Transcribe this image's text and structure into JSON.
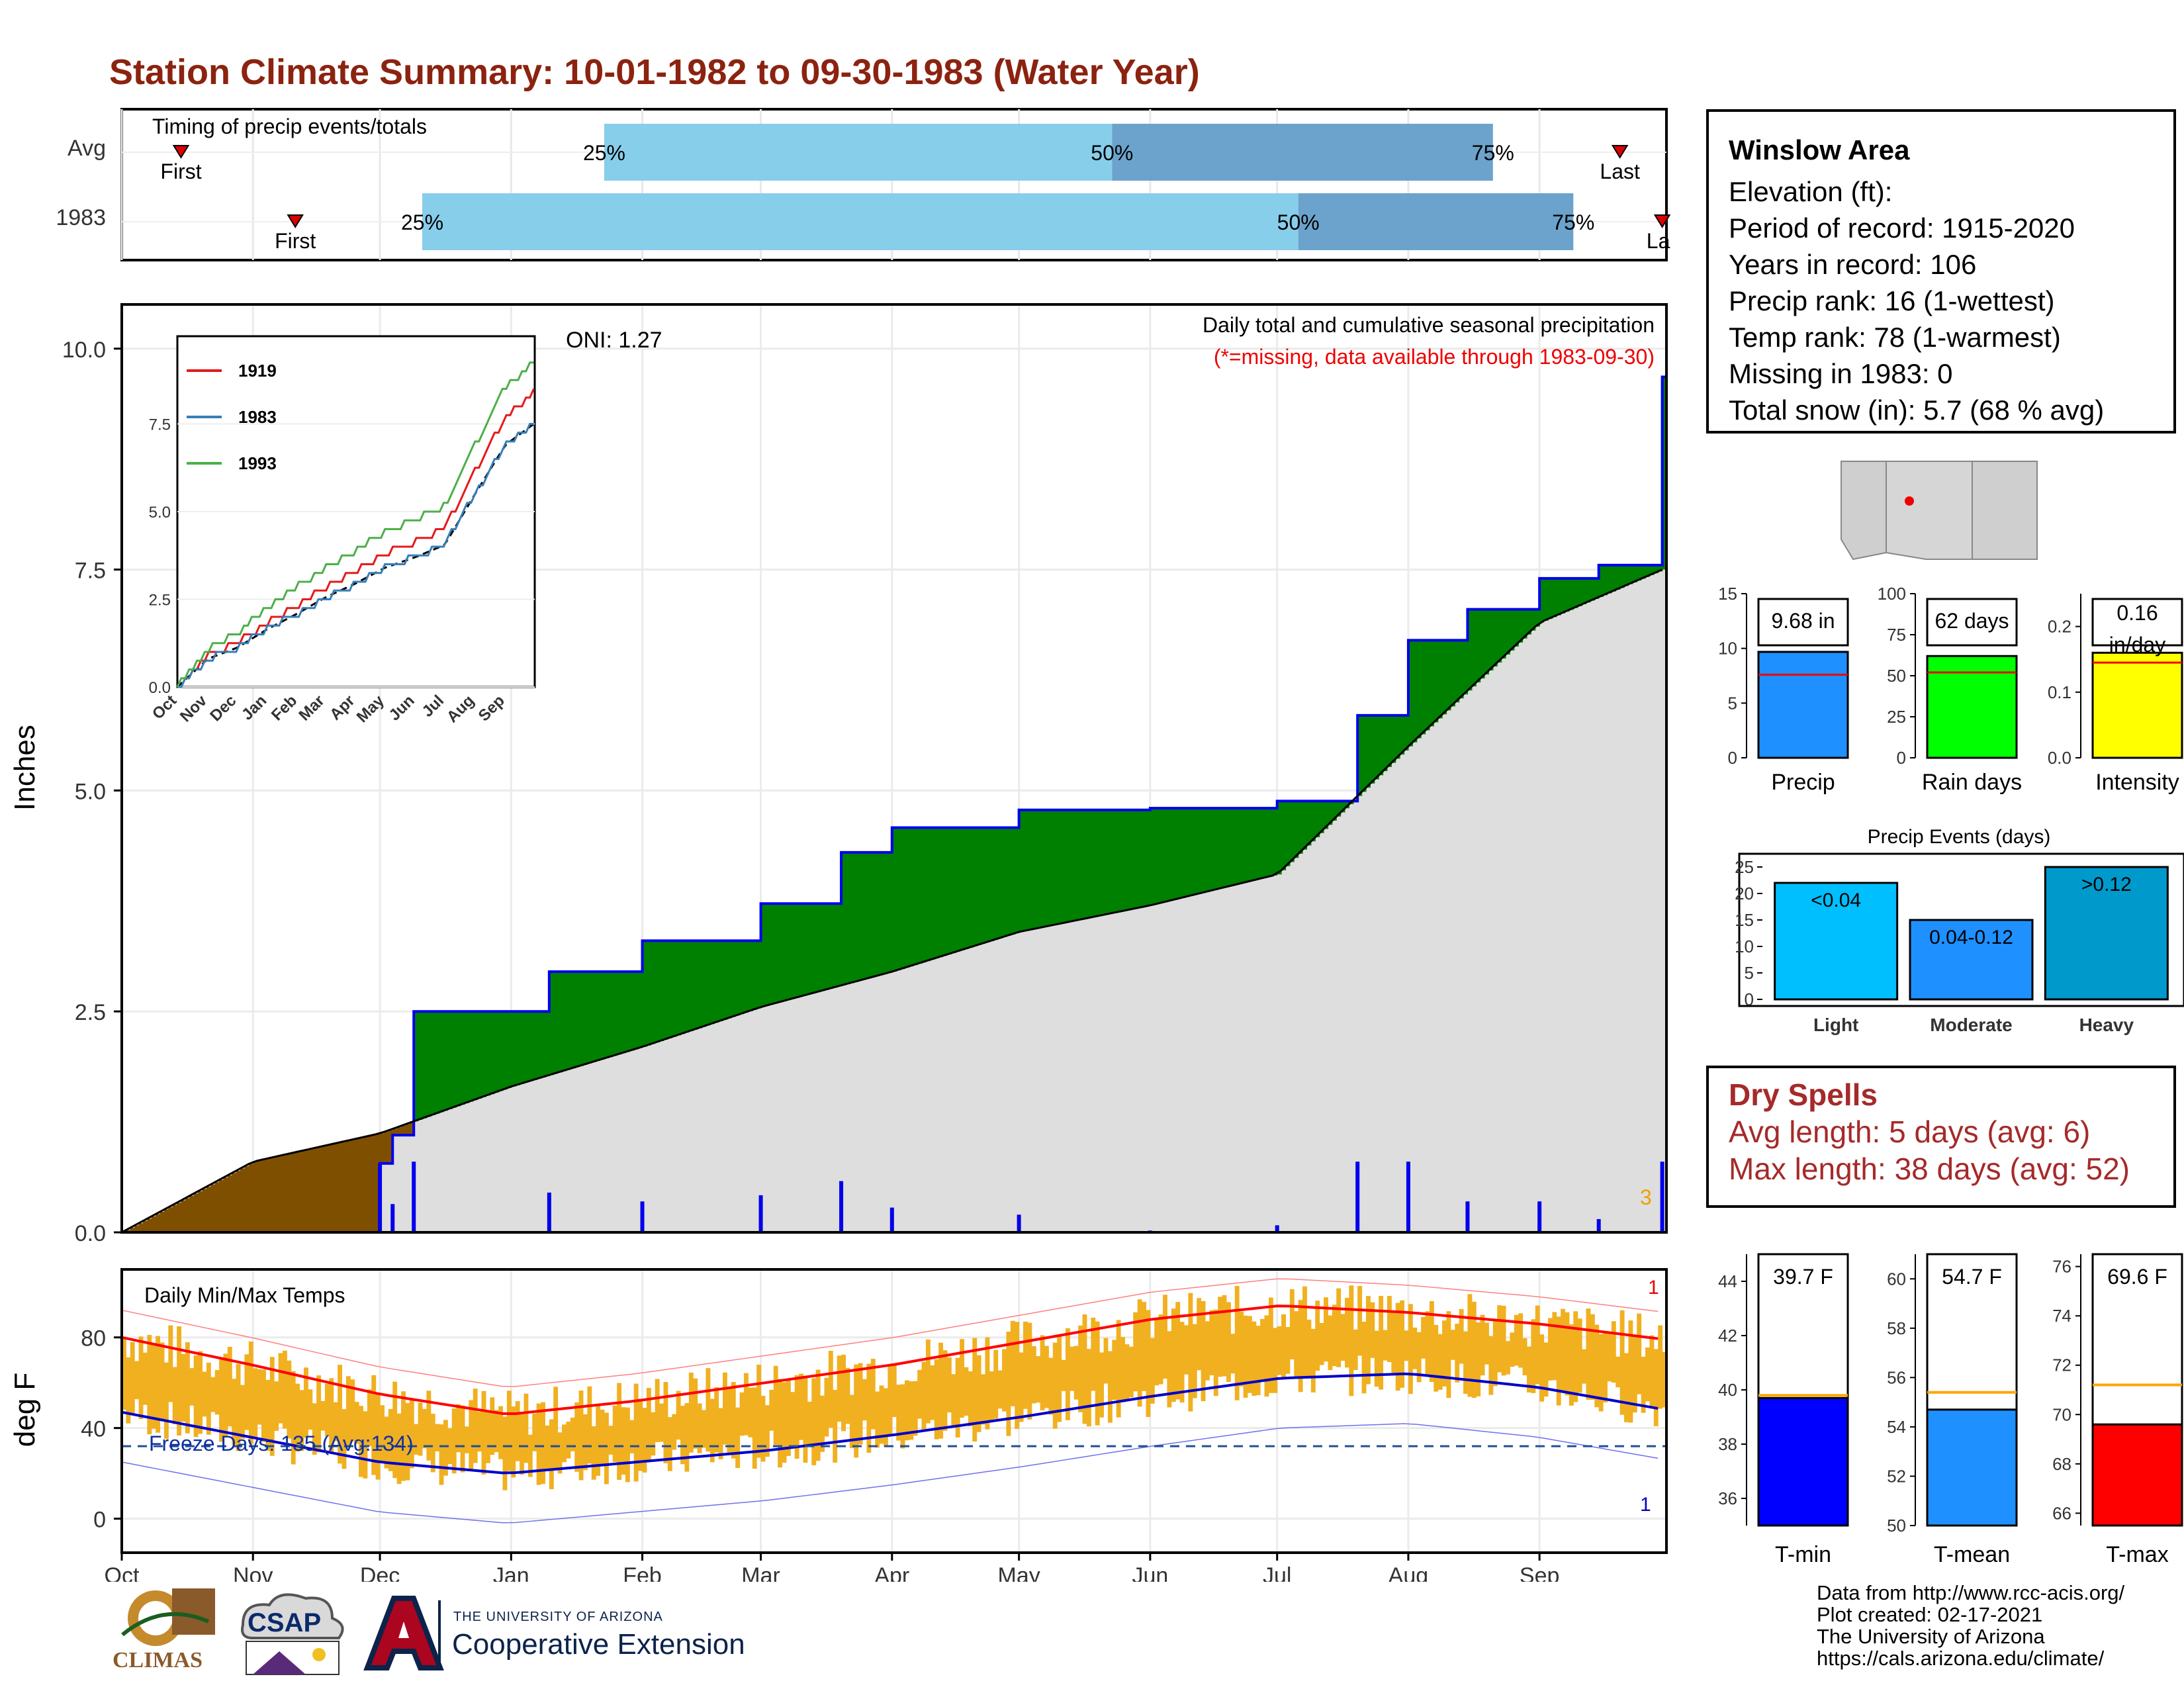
{
  "title": "Station Climate Summary: 10-01-1982 to 09-30-1983 (Water Year)",
  "timing": {
    "label": "Timing of precip events/totals",
    "rows": [
      "Avg",
      "1983"
    ],
    "first_label": "First",
    "last_label": "Last",
    "last_label_cut": "La",
    "avg": {
      "first": "1982-10-15",
      "p25": "1983-01-23",
      "p50": "1983-05-23",
      "p75": "1983-08-21",
      "last": "1983-09-20"
    },
    "y1983": {
      "first": "1982-11-11",
      "p25": "1982-12-11",
      "p50": "1983-07-06",
      "p75": "1983-09-09",
      "last": "1983-09-30"
    },
    "pct_labels": [
      "25%",
      "50%",
      "75%"
    ]
  },
  "main": {
    "ylabel": "Inches",
    "oni": "ONI: 1.27",
    "note1": "Daily total and cumulative seasonal precipitation",
    "note2": "(*=missing, data available through 1983-09-30)",
    "count_label": "3"
  },
  "inset": {
    "legend": [
      "1919",
      "1983",
      "1993"
    ],
    "colors": [
      "#e41a1c",
      "#377eb8",
      "#4daf4a"
    ]
  },
  "temps": {
    "ylabel": "deg F",
    "label": "Daily Min/Max Temps",
    "freeze": "Freeze Days: 135 (Avg:134)",
    "rank_top": "1",
    "rank_bottom": "1"
  },
  "months": [
    "Oct",
    "Nov",
    "Dec",
    "Jan",
    "Feb",
    "Mar",
    "Apr",
    "May",
    "Jun",
    "Jul",
    "Aug",
    "Sep"
  ],
  "info": {
    "station": "Winslow Area",
    "lines": [
      "Elevation (ft):",
      "Period of record: 1915-2020",
      "Years in record: 106",
      "Precip rank: 16 (1-wettest)",
      "Temp rank: 78 (1-warmest)",
      "Missing in 1983: 0",
      "Total snow (in): 5.7 (68 % avg)"
    ]
  },
  "summary_bars": {
    "precip": {
      "label": "Precip",
      "value_label": "9.68 in"
    },
    "rain_days": {
      "label": "Rain days",
      "value_label": "62 days"
    },
    "intensity": {
      "label": "Intensity",
      "value_label_1": "0.16",
      "value_label_2": "in/day"
    }
  },
  "events": {
    "title": "Precip Events (days)",
    "categories": [
      "Light",
      "Moderate",
      "Heavy"
    ],
    "bar_labels": [
      "<0.04",
      "0.04-0.12",
      ">0.12"
    ]
  },
  "dry": {
    "title": "Dry Spells",
    "avg": "Avg length: 5 days (avg: 6)",
    "max": "Max length: 38 days (avg: 52)"
  },
  "temp_bars": {
    "tmin": {
      "label": "T-min",
      "value_label": "39.7 F"
    },
    "tmean": {
      "label": "T-mean",
      "value_label": "54.7 F"
    },
    "tmax": {
      "label": "T-max",
      "value_label": "69.6 F"
    }
  },
  "logos": {
    "climas": "CLIMAS",
    "csap": "CSAP",
    "ua_small": "THE UNIVERSITY OF ARIZONA",
    "ua_big": "Cooperative Extension"
  },
  "credits": [
    "Data from http://www.rcc-acis.org/",
    "Plot created: 02-17-2021",
    "The University of Arizona",
    "https://cals.arizona.edu/climate/"
  ],
  "colors": {
    "title": "#8b2310",
    "green": "#008000",
    "brown": "#7f4f00",
    "gray": "#dedede",
    "blue": "#0000ee",
    "light_blue": "#87ceeb",
    "mid_blue": "#6ba3cc",
    "orange": "#f0b020",
    "red": "#ff0000",
    "dry": "#a52a2a"
  },
  "chart_data": [
    {
      "type": "area",
      "title": "Daily total and cumulative seasonal precipitation",
      "ylabel": "Inches",
      "ylim": [
        0,
        10.5
      ],
      "yticks": [
        0.0,
        2.5,
        5.0,
        7.5,
        10.0
      ],
      "x_axis": "Oct 1982 - Sep 1983",
      "series": [
        {
          "name": "1983",
          "x": [
            "1982-10-01",
            "1982-11-28",
            "1982-12-01",
            "1982-12-04",
            "1982-12-09",
            "1983-01-10",
            "1983-02-01",
            "1983-03-01",
            "1983-03-20",
            "1983-04-01",
            "1983-05-01",
            "1983-06-01",
            "1983-07-01",
            "1983-07-20",
            "1983-08-01",
            "1983-08-15",
            "1983-09-01",
            "1983-09-15",
            "1983-09-30"
          ],
          "values": [
            0.0,
            0.0,
            0.78,
            1.1,
            2.5,
            2.95,
            3.3,
            3.72,
            4.3,
            4.58,
            4.78,
            4.8,
            4.88,
            5.85,
            6.7,
            7.05,
            7.4,
            7.55,
            9.68
          ]
        },
        {
          "name": "Average",
          "x": [
            "1982-10-01",
            "1982-11-01",
            "1982-12-01",
            "1983-01-01",
            "1983-02-01",
            "1983-03-01",
            "1983-04-01",
            "1983-05-01",
            "1983-06-01",
            "1983-07-01",
            "1983-08-01",
            "1983-09-01",
            "1983-09-30"
          ],
          "values": [
            0.0,
            0.8,
            1.12,
            1.65,
            2.1,
            2.55,
            2.95,
            3.4,
            3.7,
            4.05,
            5.5,
            6.9,
            7.5
          ]
        }
      ]
    },
    {
      "type": "line",
      "title": "Daily Min/Max Temps",
      "ylabel": "deg F",
      "ylim": [
        -15,
        110
      ],
      "yticks": [
        0,
        40,
        80
      ],
      "series": [
        {
          "name": "Avg Max",
          "x": [
            "Oct",
            "Nov",
            "Dec",
            "Jan",
            "Feb",
            "Mar",
            "Apr",
            "May",
            "Jun",
            "Jul",
            "Aug",
            "Sep",
            "Sep-end"
          ],
          "values": [
            80,
            68,
            55,
            46,
            52,
            60,
            68,
            78,
            88,
            94,
            91,
            86,
            79
          ]
        },
        {
          "name": "Avg Min",
          "x": [
            "Oct",
            "Nov",
            "Dec",
            "Jan",
            "Feb",
            "Mar",
            "Apr",
            "May",
            "Jun",
            "Jul",
            "Aug",
            "Sep",
            "Sep-end"
          ],
          "values": [
            47,
            36,
            25,
            20,
            25,
            30,
            37,
            45,
            54,
            62,
            64,
            58,
            48
          ]
        },
        {
          "name": "Freeze line",
          "values": [
            32
          ]
        }
      ]
    },
    {
      "type": "bar",
      "title": "Summary",
      "categories": [
        "Precip",
        "Rain days",
        "Intensity"
      ],
      "values": [
        9.68,
        62,
        0.16
      ],
      "averages": [
        7.6,
        52,
        0.145
      ]
    },
    {
      "type": "bar",
      "title": "Precip Events (days)",
      "categories": [
        "Light",
        "Moderate",
        "Heavy"
      ],
      "values": [
        22,
        15,
        25
      ],
      "ylim": [
        0,
        25
      ]
    },
    {
      "type": "bar",
      "title": "Temperature",
      "categories": [
        "T-min",
        "T-mean",
        "T-max"
      ],
      "values": [
        39.7,
        54.7,
        69.6
      ],
      "averages": [
        39.8,
        55.4,
        71.2
      ]
    }
  ]
}
